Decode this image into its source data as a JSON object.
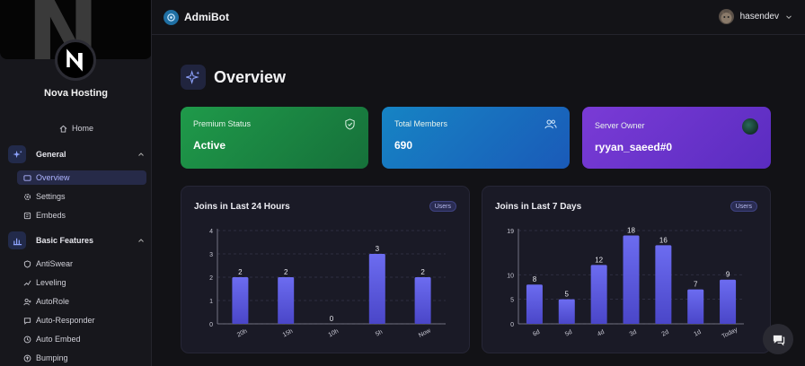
{
  "sidebar": {
    "server_name": "Nova Hosting",
    "home_label": "Home",
    "sections": [
      {
        "title": "General",
        "items": [
          "Overview",
          "Settings",
          "Embeds"
        ]
      },
      {
        "title": "Basic Features",
        "items": [
          "AntiSwear",
          "Leveling",
          "AutoRole",
          "Auto-Responder",
          "Auto Embed",
          "Bumping"
        ]
      }
    ],
    "active_item": "Overview"
  },
  "topbar": {
    "brand": "AdmiBot",
    "username": "hasendev"
  },
  "page": {
    "title": "Overview"
  },
  "cards": [
    {
      "label": "Premium Status",
      "value": "Active",
      "icon": "shield-check-icon"
    },
    {
      "label": "Total Members",
      "value": "690",
      "icon": "users-icon"
    },
    {
      "label": "Server Owner",
      "value": "ryyan_saeed#0",
      "icon": "owner-avatar"
    }
  ],
  "colors": {
    "accent": "#5b5bd6",
    "card_green": "#1f9a4a",
    "card_blue": "#1684c4",
    "card_purple": "#7a3bd6"
  },
  "charts": [
    {
      "title": "Joins in Last 24 Hours",
      "badge": "Users"
    },
    {
      "title": "Joins in Last 7 Days",
      "badge": "Users"
    }
  ],
  "chart_data": [
    {
      "type": "bar",
      "title": "Joins in Last 24 Hours",
      "categories": [
        "20h",
        "15h",
        "10h",
        "5h",
        "Now"
      ],
      "values": [
        2,
        2,
        0,
        3,
        2
      ],
      "ylim": [
        0,
        4
      ],
      "yticks": [
        0,
        1,
        2,
        3,
        4
      ],
      "grid": true
    },
    {
      "type": "bar",
      "title": "Joins in Last 7 Days",
      "categories": [
        "6d",
        "5d",
        "4d",
        "3d",
        "2d",
        "1d",
        "Today"
      ],
      "values": [
        8,
        5,
        12,
        18,
        16,
        7,
        9
      ],
      "ylim": [
        0,
        19
      ],
      "yticks": [
        0,
        5,
        10,
        19
      ],
      "grid": true
    }
  ]
}
